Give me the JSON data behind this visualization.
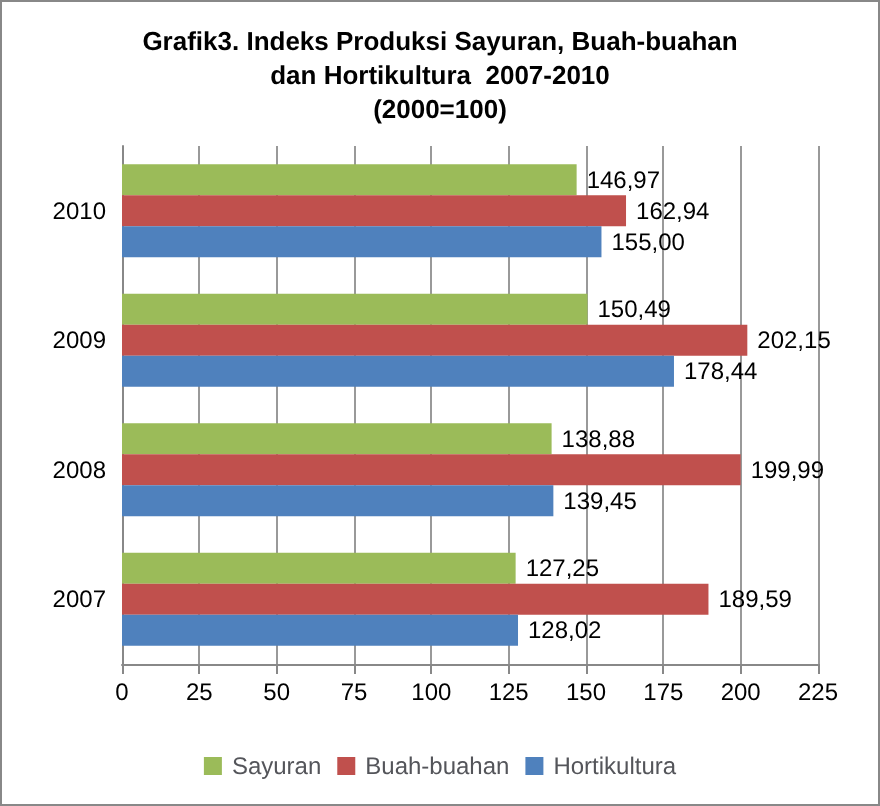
{
  "chart_data": {
    "type": "bar",
    "orientation": "horizontal",
    "title": "Grafik3. Indeks Produksi Sayuran, Buah-buahan\ndan Hortikultura  2007-2010\n(2000=100)",
    "categories": [
      "2010",
      "2009",
      "2008",
      "2007"
    ],
    "series": [
      {
        "name": "Sayuran",
        "color": "#9bbb59",
        "values": [
          146.97,
          150.49,
          138.88,
          127.25
        ],
        "value_labels": [
          "146,97",
          "150,49",
          "138,88",
          "127,25"
        ]
      },
      {
        "name": "Buah-buahan",
        "color": "#c0504d",
        "values": [
          162.94,
          202.15,
          199.99,
          189.59
        ],
        "value_labels": [
          "162,94",
          "202,15",
          "199,99",
          "189,59"
        ]
      },
      {
        "name": "Hortikultura",
        "color": "#4f81bd",
        "values": [
          155.0,
          178.44,
          139.45,
          128.02
        ],
        "value_labels": [
          "155,00",
          "178,44",
          "139,45",
          "128,02"
        ]
      }
    ],
    "xlim": [
      0,
      225
    ],
    "xticks": [
      0,
      25,
      50,
      75,
      100,
      125,
      150,
      175,
      200,
      225
    ],
    "grid": "x",
    "legend": "bottom"
  }
}
